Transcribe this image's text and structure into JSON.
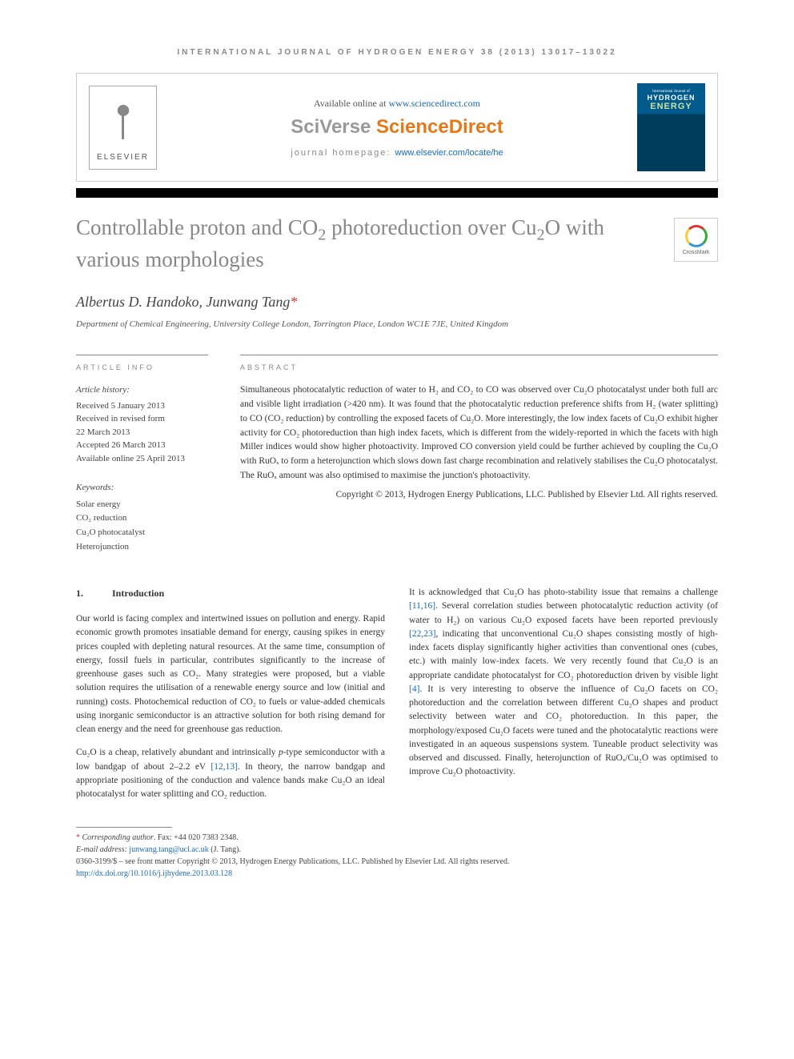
{
  "journal_header": "INTERNATIONAL JOURNAL OF HYDROGEN ENERGY 38 (2013) 13017–13022",
  "header": {
    "available": "Available online at ",
    "available_link": "www.sciencedirect.com",
    "sciverse_gray": "SciVerse ",
    "sciverse_orange": "ScienceDirect",
    "homepage_label": "journal homepage: ",
    "homepage_link": "www.elsevier.com/locate/he",
    "elsevier": "ELSEVIER",
    "cover_line1": "International Journal of",
    "cover_line2": "HYDROGEN",
    "cover_line3": "ENERGY",
    "crossmark": "CrossMark"
  },
  "title_parts": {
    "p1": "Controllable proton and CO",
    "p2": " photoreduction over Cu",
    "p3": "O with various morphologies"
  },
  "authors": "Albertus D. Handoko, Junwang Tang",
  "affiliation": "Department of Chemical Engineering, University College London, Torrington Place, London WC1E 7JE, United Kingdom",
  "info": {
    "label": "ARTICLE INFO",
    "history_label": "Article history:",
    "received": "Received 5 January 2013",
    "revised": "Received in revised form",
    "revised_date": "22 March 2013",
    "accepted": "Accepted 26 March 2013",
    "online": "Available online 25 April 2013",
    "keywords_label": "Keywords:",
    "kw1": "Solar energy",
    "kw2": "CO₂ reduction",
    "kw3": "Cu₂O photocatalyst",
    "kw4": "Heterojunction"
  },
  "abstract": {
    "label": "ABSTRACT",
    "text": "Simultaneous photocatalytic reduction of water to H₂ and CO₂ to CO was observed over Cu₂O photocatalyst under both full arc and visible light irradiation (>420 nm). It was found that the photocatalytic reduction preference shifts from H₂ (water splitting) to CO (CO₂ reduction) by controlling the exposed facets of Cu₂O. More interestingly, the low index facets of Cu₂O exhibit higher activity for CO₂ photoreduction than high index facets, which is different from the widely-reported in which the facets with high Miller indices would show higher photoactivity. Improved CO conversion yield could be further achieved by coupling the Cu₂O with RuOₓ to form a heterojunction which slows down fast charge recombination and relatively stabilises the Cu₂O photocatalyst. The RuOₓ amount was also optimised to maximise the junction's photoactivity.",
    "copyright": "Copyright © 2013, Hydrogen Energy Publications, LLC. Published by Elsevier Ltd. All rights reserved."
  },
  "body": {
    "sec_num": "1.",
    "sec_title": "Introduction",
    "p1": "Our world is facing complex and intertwined issues on pollution and energy. Rapid economic growth promotes insatiable demand for energy, causing spikes in energy prices coupled with depleting natural resources. At the same time, consumption of energy, fossil fuels in particular, contributes significantly to the increase of greenhouse gases such as CO₂. Many strategies were proposed, but a viable solution requires the utilisation of a renewable energy source and low (initial and running) costs. Photochemical reduction of CO₂ to fuels or value-added chemicals using inorganic semiconductor is an attractive solution for both rising demand for clean energy and the need for greenhouse gas reduction.",
    "p2a": "Cu₂O is a cheap, relatively abundant and intrinsically ",
    "p2b": "p",
    "p2c": "-type semiconductor with a low bandgap of about 2–2.2 eV ",
    "p2_ref": "[12,13]",
    "p2d": ". In theory, the narrow bandgap and appropriate positioning of the conduction and valence bands make Cu₂O an ideal photocatalyst for water splitting and CO₂ reduction.",
    "p3a": "It is acknowledged that Cu₂O has photo-stability issue that remains a challenge ",
    "p3_ref1": "[11,16]",
    "p3b": ". Several correlation studies between photocatalytic reduction activity (of water to H₂) on various Cu₂O exposed facets have been reported previously ",
    "p3_ref2": "[22,23]",
    "p3c": ", indicating that unconventional Cu₂O shapes consisting mostly of high-index facets display significantly higher activities than conventional ones (cubes, etc.) with mainly low-index facets. We very recently found that Cu₂O is an appropriate candidate photocatalyst for CO₂ photoreduction driven by visible light ",
    "p3_ref3": "[4]",
    "p3d": ". It is very interesting to observe the influence of Cu₂O facets on CO₂ photoreduction and the correlation between different Cu₂O shapes and product selectivity between water and CO₂ photoreduction. In this paper, the morphology/exposed Cu₂O facets were tuned and the photocatalytic reactions were investigated in an aqueous suspensions system. Tuneable product selectivity was observed and discussed. Finally, heterojunction of RuOₓ/Cu₂O was optimised to improve Cu₂O photoactivity."
  },
  "footnotes": {
    "corr": "Corresponding author",
    "fax": ". Fax: +44 020 7383 2348.",
    "email_label": "E-mail address: ",
    "email": "junwang.tang@ucl.ac.uk",
    "email_name": " (J. Tang).",
    "issn": "0360-3199/$ – see front matter Copyright © 2013, Hydrogen Energy Publications, LLC. Published by Elsevier Ltd. All rights reserved.",
    "doi": "http://dx.doi.org/10.1016/j.ijhydene.2013.03.128"
  }
}
